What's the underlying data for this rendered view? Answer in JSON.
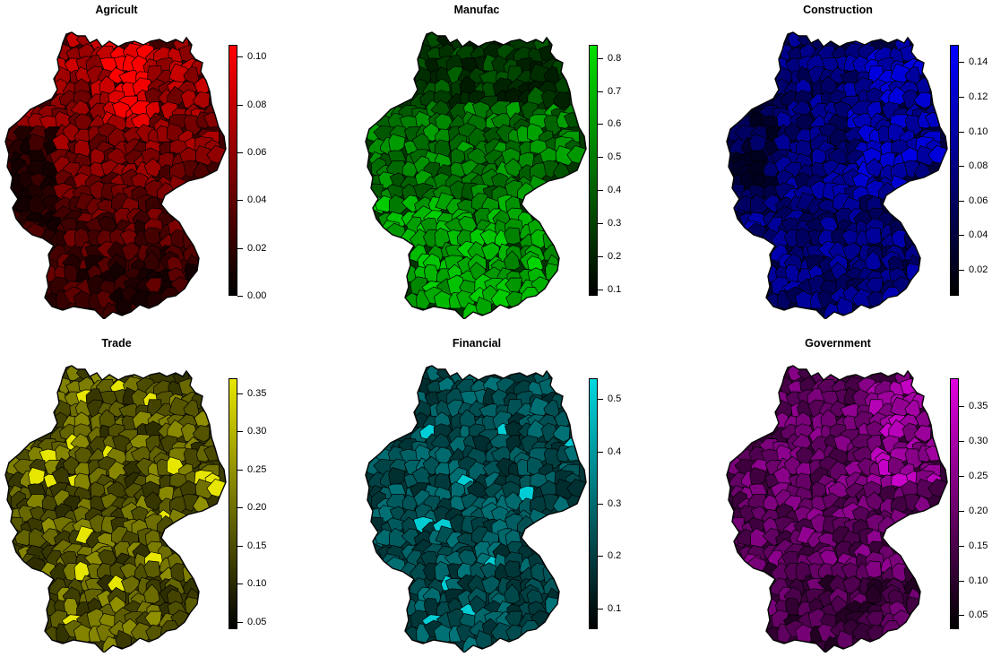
{
  "figure": {
    "region": "Germany",
    "panels": [
      {
        "title": "Agricult",
        "color": "#ff0000",
        "ticks": [
          "0.00",
          "0.02",
          "0.04",
          "0.06",
          "0.08",
          "0.10"
        ],
        "range": [
          0.0,
          0.105
        ]
      },
      {
        "title": "Manufac",
        "color": "#00e000",
        "ticks": [
          "0.1",
          "0.2",
          "0.3",
          "0.4",
          "0.5",
          "0.6",
          "0.7",
          "0.8"
        ],
        "range": [
          0.08,
          0.84
        ]
      },
      {
        "title": "Construction",
        "color": "#0000ff",
        "ticks": [
          "0.02",
          "0.04",
          "0.06",
          "0.08",
          "0.10",
          "0.12",
          "0.14"
        ],
        "range": [
          0.005,
          0.15
        ]
      },
      {
        "title": "Trade",
        "color": "#e6e600",
        "ticks": [
          "0.05",
          "0.10",
          "0.15",
          "0.20",
          "0.25",
          "0.30",
          "0.35"
        ],
        "range": [
          0.04,
          0.37
        ]
      },
      {
        "title": "Financial",
        "color": "#00d8e0",
        "ticks": [
          "0.1",
          "0.2",
          "0.3",
          "0.4",
          "0.5"
        ],
        "range": [
          0.06,
          0.54
        ]
      },
      {
        "title": "Government",
        "color": "#e000e0",
        "ticks": [
          "0.05",
          "0.10",
          "0.15",
          "0.20",
          "0.25",
          "0.30",
          "0.35"
        ],
        "range": [
          0.03,
          0.39
        ]
      }
    ]
  }
}
